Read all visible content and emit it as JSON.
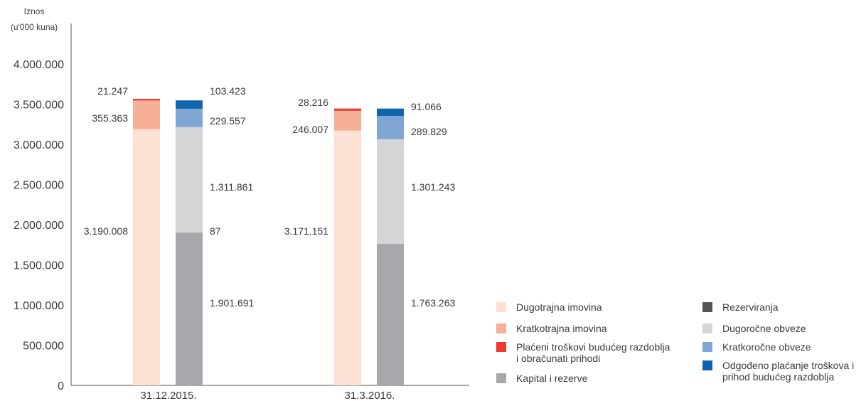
{
  "chart_data": {
    "type": "bar",
    "stacked": true,
    "ylabel": "Iznos\n(u'000 kuna)",
    "ylim": [
      0,
      4000000
    ],
    "yticks": [
      0,
      500000,
      1000000,
      1500000,
      2000000,
      2500000,
      3000000,
      3500000,
      4000000
    ],
    "ytick_labels": [
      "0",
      "500.000",
      "1.000.000",
      "1.500.000",
      "2.000.000",
      "2.500.000",
      "3.000.000",
      "3.500.000",
      "4.000.000"
    ],
    "categories": [
      "31.12.2015.",
      "31.3.2016."
    ],
    "stacks": [
      {
        "name": "assets",
        "series": [
          {
            "name": "Dugotrajna imovina",
            "color": "#fce0d4",
            "values": [
              3190008,
              3171151
            ],
            "labels": [
              "3.190.008",
              "3.171.151"
            ]
          },
          {
            "name": "Kratkotrajna imovina",
            "color": "#f6b097",
            "values": [
              355363,
              246007
            ],
            "labels": [
              "355.363",
              "246.007"
            ]
          },
          {
            "name": "Plaćeni troškovi budućeg razdoblja\ni obračunati prihodi",
            "color": "#ee3b2e",
            "values": [
              21247,
              28216
            ],
            "labels": [
              "21.247",
              "28.216"
            ]
          }
        ]
      },
      {
        "name": "liabilities",
        "series": [
          {
            "name": "Kapital i rezerve",
            "color": "#a7a8ac",
            "values": [
              1901691,
              1763263
            ],
            "labels": [
              "1.901.691",
              "1.763.263"
            ]
          },
          {
            "name": "Rezerviranja",
            "color": "#555555",
            "values": [
              87,
              0
            ],
            "labels": [
              "87",
              ""
            ]
          },
          {
            "name": "Dugoročne obveze",
            "color": "#d4d5d7",
            "values": [
              1311861,
              1301243
            ],
            "labels": [
              "1.311.861",
              "1.301.243"
            ]
          },
          {
            "name": "Kratkoročne obveze",
            "color": "#7fa5d3",
            "values": [
              229557,
              289829
            ],
            "labels": [
              "229.557",
              "289.829"
            ]
          },
          {
            "name": "Odgođeno plaćanje troškova i\nprihod budućeg razdoblja",
            "color": "#0f65ad",
            "values": [
              103423,
              91066
            ],
            "labels": [
              "103.423",
              "91.066"
            ]
          }
        ]
      }
    ],
    "legend": {
      "position": "bottom-right",
      "items": [
        {
          "label": "Dugotrajna imovina",
          "color": "#fce0d4"
        },
        {
          "label": "Kratkotrajna imovina",
          "color": "#f6b097"
        },
        {
          "label": "Plaćeni troškovi budućeg razdoblja\ni obračunati prihodi",
          "color": "#ee3b2e"
        },
        {
          "label": "Kapital i rezerve",
          "color": "#a7a8ac"
        },
        {
          "label": "Rezerviranja",
          "color": "#555555"
        },
        {
          "label": "Dugoročne obveze",
          "color": "#d4d5d7"
        },
        {
          "label": "Kratkoročne obveze",
          "color": "#7fa5d3"
        },
        {
          "label": "Odgođeno plaćanje troškova i\nprihod budućeg razdoblja",
          "color": "#0f65ad"
        }
      ]
    }
  }
}
